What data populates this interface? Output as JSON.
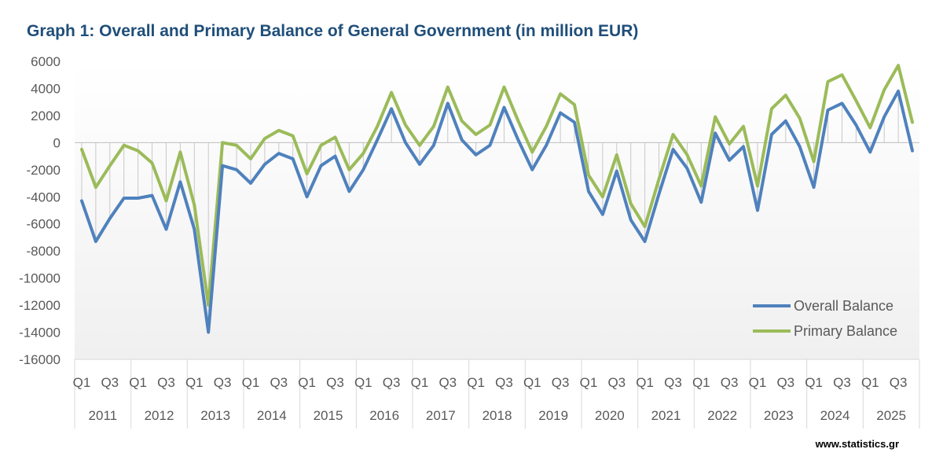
{
  "chart_data": {
    "type": "line",
    "title": "Graph 1: Overall and Primary Balance of General Government (in million EUR)",
    "source": "www.statistics.gr",
    "xlabel": "",
    "ylabel": "",
    "ylim": [
      -16000,
      6000
    ],
    "y_ticks": [
      6000,
      4000,
      2000,
      0,
      -2000,
      -4000,
      -6000,
      -8000,
      -10000,
      -12000,
      -14000,
      -16000
    ],
    "quarter_tick_labels": [
      "Q1",
      "Q3"
    ],
    "years": [
      "2011",
      "2012",
      "2013",
      "2014",
      "2015",
      "2016",
      "2017",
      "2018",
      "2019",
      "2020",
      "2021",
      "2022",
      "2023",
      "2024",
      "2025"
    ],
    "x": [
      "2011Q1",
      "2011Q2",
      "2011Q3",
      "2011Q4",
      "2012Q1",
      "2012Q2",
      "2012Q3",
      "2012Q4",
      "2013Q1",
      "2013Q2",
      "2013Q3",
      "2013Q4",
      "2014Q1",
      "2014Q2",
      "2014Q3",
      "2014Q4",
      "2015Q1",
      "2015Q2",
      "2015Q3",
      "2015Q4",
      "2016Q1",
      "2016Q2",
      "2016Q3",
      "2016Q4",
      "2017Q1",
      "2017Q2",
      "2017Q3",
      "2017Q4",
      "2018Q1",
      "2018Q2",
      "2018Q3",
      "2018Q4",
      "2019Q1",
      "2019Q2",
      "2019Q3",
      "2019Q4",
      "2020Q1",
      "2020Q2",
      "2020Q3",
      "2020Q4",
      "2021Q1",
      "2021Q2",
      "2021Q3",
      "2021Q4",
      "2022Q1",
      "2022Q2",
      "2022Q3",
      "2022Q4",
      "2023Q1",
      "2023Q2",
      "2023Q3",
      "2023Q4",
      "2024Q1",
      "2024Q2",
      "2024Q3",
      "2024Q4",
      "2025Q1",
      "2025Q2",
      "2025Q3",
      "2025Q4"
    ],
    "series": [
      {
        "name": "Overall Balance",
        "color": "#4f81bd",
        "values": [
          -4300,
          -7300,
          -5600,
          -4100,
          -4100,
          -3900,
          -6400,
          -2900,
          -6400,
          -14000,
          -1700,
          -2000,
          -3000,
          -1600,
          -800,
          -1200,
          -4000,
          -1700,
          -1000,
          -3600,
          -2000,
          200,
          2500,
          0,
          -1600,
          -200,
          2900,
          200,
          -900,
          -200,
          2600,
          200,
          -2000,
          -200,
          2200,
          1500,
          -3600,
          -5300,
          -2100,
          -5700,
          -7300,
          -3800,
          -500,
          -1900,
          -4400,
          700,
          -1300,
          -300,
          -5000,
          600,
          1600,
          -300,
          -3300,
          2400,
          2900,
          1300,
          -700,
          1900,
          3800,
          -600
        ]
      },
      {
        "name": "Primary Balance",
        "color": "#9bbb59",
        "values": [
          -500,
          -3300,
          -1700,
          -200,
          -600,
          -1500,
          -4300,
          -700,
          -4600,
          -12000,
          0,
          -200,
          -1200,
          300,
          900,
          500,
          -2300,
          -200,
          400,
          -2000,
          -800,
          1200,
          3700,
          1300,
          -200,
          1200,
          4100,
          1600,
          600,
          1300,
          4100,
          1600,
          -700,
          1200,
          3600,
          2800,
          -2400,
          -4000,
          -900,
          -4500,
          -6200,
          -2700,
          600,
          -900,
          -3200,
          1900,
          -100,
          1200,
          -3200,
          2500,
          3500,
          1800,
          -1400,
          4500,
          5000,
          3100,
          1100,
          3900,
          5700,
          1500
        ]
      }
    ],
    "legend": [
      "Overall Balance",
      "Primary Balance"
    ],
    "legend_position": "bottom-right",
    "colors": {
      "title": "#1f4e79",
      "axis": "#d9d9d9",
      "text": "#595959"
    }
  }
}
